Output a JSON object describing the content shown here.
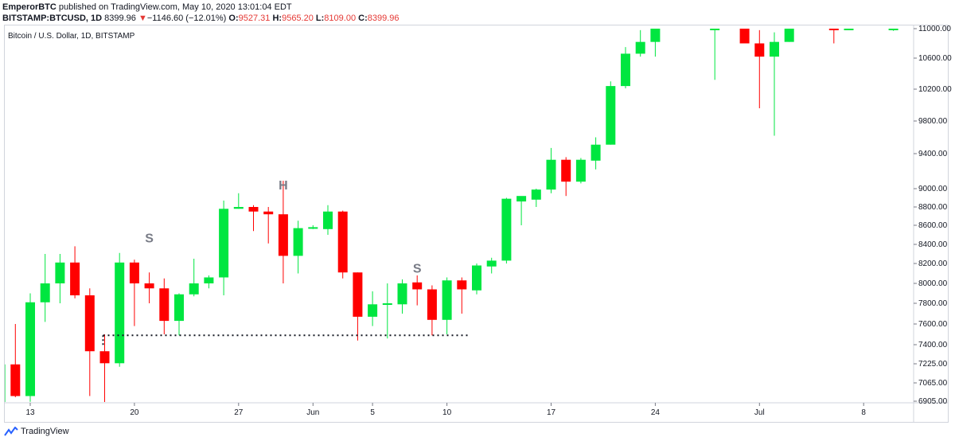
{
  "header": {
    "author": "EmperorBTC",
    "published": "published on TradingView.com, May 10, 2020 13:01:04 EDT",
    "symbol": "BITSTAMP:BTCUSD, 1D",
    "last": "8399.96",
    "change_arrow": "▼",
    "change": "−1146.60 (−12.01%)",
    "o_label": "O:",
    "o_value": "9527.31",
    "h_label": "H:",
    "h_value": "9565.20",
    "l_label": "L:",
    "l_value": "8109.00",
    "c_label": "C:",
    "c_value": "8399.96"
  },
  "legend_title": "Bitcoin / U.S. Dollar, 1D, BITSTAMP",
  "footer": {
    "brand": "TradingView",
    "logo_icon": "tradingview-logo-icon"
  },
  "colors": {
    "up": "#00e640",
    "down": "#ff0000",
    "wick_up": "#00e640",
    "wick_down": "#ff0000"
  },
  "chart_data": {
    "type": "candlestick",
    "title": "Bitcoin / U.S. Dollar, 1D, BITSTAMP",
    "x_ticks": [
      "13",
      "20",
      "27",
      "Jun",
      "5",
      "10",
      "17",
      "24",
      "Jul",
      "8"
    ],
    "y_ticks": [
      "11000.00",
      "10600.00",
      "10200.00",
      "9800.00",
      "9400.00",
      "9000.00",
      "8800.00",
      "8600.00",
      "8400.00",
      "8200.00",
      "8000.00",
      "7800.00",
      "7600.00",
      "7400.00",
      "7225.00",
      "7065.00",
      "6905.00"
    ],
    "candles": [
      {
        "date": "2020-05-11",
        "o": 6890,
        "h": 7240,
        "l": 6880,
        "c": 7220
      },
      {
        "date": "2020-05-12",
        "o": 7220,
        "h": 7600,
        "l": 6940,
        "c": 6950
      },
      {
        "date": "2020-05-13",
        "o": 6950,
        "h": 7900,
        "l": 6900,
        "c": 7810
      },
      {
        "date": "2020-05-14",
        "o": 7810,
        "h": 8300,
        "l": 7620,
        "c": 8000
      },
      {
        "date": "2020-05-15",
        "o": 8000,
        "h": 8300,
        "l": 7800,
        "c": 8210
      },
      {
        "date": "2020-05-16",
        "o": 8210,
        "h": 8380,
        "l": 7850,
        "c": 7880
      },
      {
        "date": "2020-05-17",
        "o": 7880,
        "h": 7950,
        "l": 6950,
        "c": 7340
      },
      {
        "date": "2020-05-18",
        "o": 7340,
        "h": 7500,
        "l": 6860,
        "c": 7230
      },
      {
        "date": "2020-05-19",
        "o": 7230,
        "h": 8310,
        "l": 7200,
        "c": 8210
      },
      {
        "date": "2020-05-20",
        "o": 8210,
        "h": 8240,
        "l": 7580,
        "c": 8000
      },
      {
        "date": "2020-05-21",
        "o": 8000,
        "h": 8110,
        "l": 7800,
        "c": 7950
      },
      {
        "date": "2020-05-22",
        "o": 7950,
        "h": 8050,
        "l": 7500,
        "c": 7630
      },
      {
        "date": "2020-05-23",
        "o": 7630,
        "h": 7900,
        "l": 7490,
        "c": 7890
      },
      {
        "date": "2020-05-24",
        "o": 7890,
        "h": 8250,
        "l": 7870,
        "c": 8000
      },
      {
        "date": "2020-05-25",
        "o": 8000,
        "h": 8080,
        "l": 7950,
        "c": 8060
      },
      {
        "date": "2020-05-26",
        "o": 8060,
        "h": 8870,
        "l": 7880,
        "c": 8780
      },
      {
        "date": "2020-05-27",
        "o": 8780,
        "h": 8950,
        "l": 8780,
        "c": 8800
      },
      {
        "date": "2020-05-28",
        "o": 8800,
        "h": 8820,
        "l": 8540,
        "c": 8750
      },
      {
        "date": "2020-05-29",
        "o": 8750,
        "h": 8800,
        "l": 8410,
        "c": 8720
      },
      {
        "date": "2020-05-30",
        "o": 8720,
        "h": 9090,
        "l": 8000,
        "c": 8280
      },
      {
        "date": "2020-05-31",
        "o": 8280,
        "h": 8650,
        "l": 8100,
        "c": 8570
      },
      {
        "date": "2020-06-01",
        "o": 8570,
        "h": 8600,
        "l": 8560,
        "c": 8580
      },
      {
        "date": "2020-06-02",
        "o": 8560,
        "h": 8820,
        "l": 8500,
        "c": 8750
      },
      {
        "date": "2020-06-03",
        "o": 8750,
        "h": 8760,
        "l": 8050,
        "c": 8110
      },
      {
        "date": "2020-06-04",
        "o": 8110,
        "h": 8110,
        "l": 7440,
        "c": 7670
      },
      {
        "date": "2020-06-05",
        "o": 7670,
        "h": 7920,
        "l": 7580,
        "c": 7790
      },
      {
        "date": "2020-06-06",
        "o": 7790,
        "h": 8000,
        "l": 7460,
        "c": 7800
      },
      {
        "date": "2020-06-07",
        "o": 7790,
        "h": 8040,
        "l": 7700,
        "c": 8000
      },
      {
        "date": "2020-06-08",
        "o": 8010,
        "h": 8080,
        "l": 7780,
        "c": 7940
      },
      {
        "date": "2020-06-09",
        "o": 7940,
        "h": 7980,
        "l": 7490,
        "c": 7640
      },
      {
        "date": "2020-06-10",
        "o": 7640,
        "h": 8060,
        "l": 7500,
        "c": 8030
      },
      {
        "date": "2020-06-11",
        "o": 8030,
        "h": 8060,
        "l": 7700,
        "c": 7940
      },
      {
        "date": "2020-06-12",
        "o": 7930,
        "h": 8200,
        "l": 7890,
        "c": 8180
      },
      {
        "date": "2020-06-13",
        "o": 8170,
        "h": 8260,
        "l": 8100,
        "c": 8230
      },
      {
        "date": "2020-06-14",
        "o": 8230,
        "h": 8900,
        "l": 8200,
        "c": 8890
      },
      {
        "date": "2020-06-15",
        "o": 8860,
        "h": 8900,
        "l": 8600,
        "c": 8920
      },
      {
        "date": "2020-06-16",
        "o": 8880,
        "h": 9000,
        "l": 8800,
        "c": 8990
      },
      {
        "date": "2020-06-17",
        "o": 8990,
        "h": 9470,
        "l": 8950,
        "c": 9330
      },
      {
        "date": "2020-06-18",
        "o": 9330,
        "h": 9360,
        "l": 8920,
        "c": 9080
      },
      {
        "date": "2020-06-19",
        "o": 9080,
        "h": 9350,
        "l": 9060,
        "c": 9330
      },
      {
        "date": "2020-06-20",
        "o": 9320,
        "h": 9600,
        "l": 9220,
        "c": 9510
      },
      {
        "date": "2020-06-21",
        "o": 9510,
        "h": 10300,
        "l": 9510,
        "c": 10240
      },
      {
        "date": "2020-06-22",
        "o": 10240,
        "h": 10750,
        "l": 10210,
        "c": 10660
      },
      {
        "date": "2020-06-23",
        "o": 10660,
        "h": 10980,
        "l": 10620,
        "c": 10820
      },
      {
        "date": "2020-06-24",
        "o": 10820,
        "h": 11000,
        "l": 10620,
        "c": 11000
      },
      {
        "date": "2020-06-28",
        "o": 11000,
        "h": 11000,
        "l": 10320,
        "c": 11000
      },
      {
        "date": "2020-06-30",
        "o": 11000,
        "h": 11000,
        "l": 10800,
        "c": 10800
      },
      {
        "date": "2020-07-01",
        "o": 10800,
        "h": 10980,
        "l": 9960,
        "c": 10620
      },
      {
        "date": "2020-07-02",
        "o": 10620,
        "h": 10950,
        "l": 9620,
        "c": 10820
      },
      {
        "date": "2020-07-03",
        "o": 10820,
        "h": 11000,
        "l": 10820,
        "c": 11000
      },
      {
        "date": "2020-07-06",
        "o": 11000,
        "h": 11000,
        "l": 10800,
        "c": 10990
      },
      {
        "date": "2020-07-07",
        "o": 10990,
        "h": 11000,
        "l": 10980,
        "c": 11000
      },
      {
        "date": "2020-07-10",
        "o": 11000,
        "h": 11000,
        "l": 10970,
        "c": 11000
      }
    ],
    "annotations": [
      {
        "text": "S",
        "date": "2020-05-21",
        "price": 8420
      },
      {
        "text": "H",
        "date": "2020-05-30",
        "price": 8990
      },
      {
        "text": "S",
        "date": "2020-06-08",
        "price": 8110
      }
    ],
    "neckline": {
      "price": 7490,
      "from": "2020-05-18",
      "to": "2020-06-11",
      "style": "dotted"
    }
  }
}
